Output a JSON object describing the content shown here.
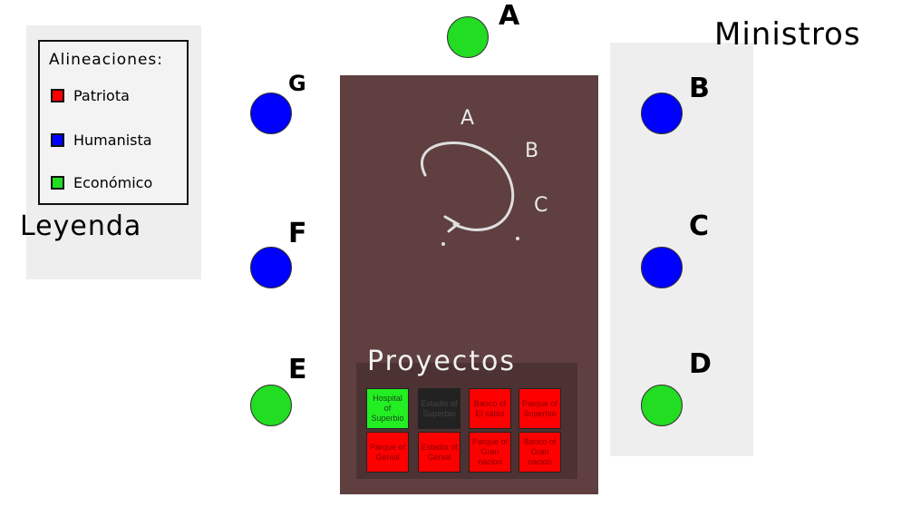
{
  "colors": {
    "patriota": "#ff0000",
    "humanista": "#0000ff",
    "economico": "#22dd22",
    "board": "#5f3f40",
    "projects_panel": "#4d3233",
    "project_active": "#22ee22",
    "project_red": "#ff0000",
    "project_disabled": "#222222"
  },
  "legend": {
    "title": "Alineaciones:",
    "items": [
      {
        "label": "Patriota",
        "color": "#ff0000"
      },
      {
        "label": "Humanista",
        "color": "#0000ff"
      },
      {
        "label": "Económico",
        "color": "#22dd22"
      }
    ],
    "caption": "Leyenda"
  },
  "ministers": {
    "title": "Ministros",
    "nodes": [
      {
        "id": "A",
        "alignment": "economico"
      },
      {
        "id": "B",
        "alignment": "humanista"
      },
      {
        "id": "C",
        "alignment": "humanista"
      },
      {
        "id": "D",
        "alignment": "economico"
      },
      {
        "id": "E",
        "alignment": "economico"
      },
      {
        "id": "F",
        "alignment": "humanista"
      },
      {
        "id": "G",
        "alignment": "humanista"
      }
    ]
  },
  "dial": {
    "letters": [
      "A",
      "B",
      "C"
    ]
  },
  "projects": {
    "title": "Proyectos",
    "items": [
      {
        "label": "Hospital of Superbio",
        "state": "active"
      },
      {
        "label": "Estadio of Superbio",
        "state": "disabled"
      },
      {
        "label": "Banco of El sabio",
        "state": "red"
      },
      {
        "label": "Parque of Superbio",
        "state": "red"
      },
      {
        "label": "Parque of Genial",
        "state": "red"
      },
      {
        "label": "Estadio of Genial",
        "state": "red"
      },
      {
        "label": "Parque of Gran nacion",
        "state": "red"
      },
      {
        "label": "Banco of Gran nacion",
        "state": "red"
      }
    ]
  }
}
